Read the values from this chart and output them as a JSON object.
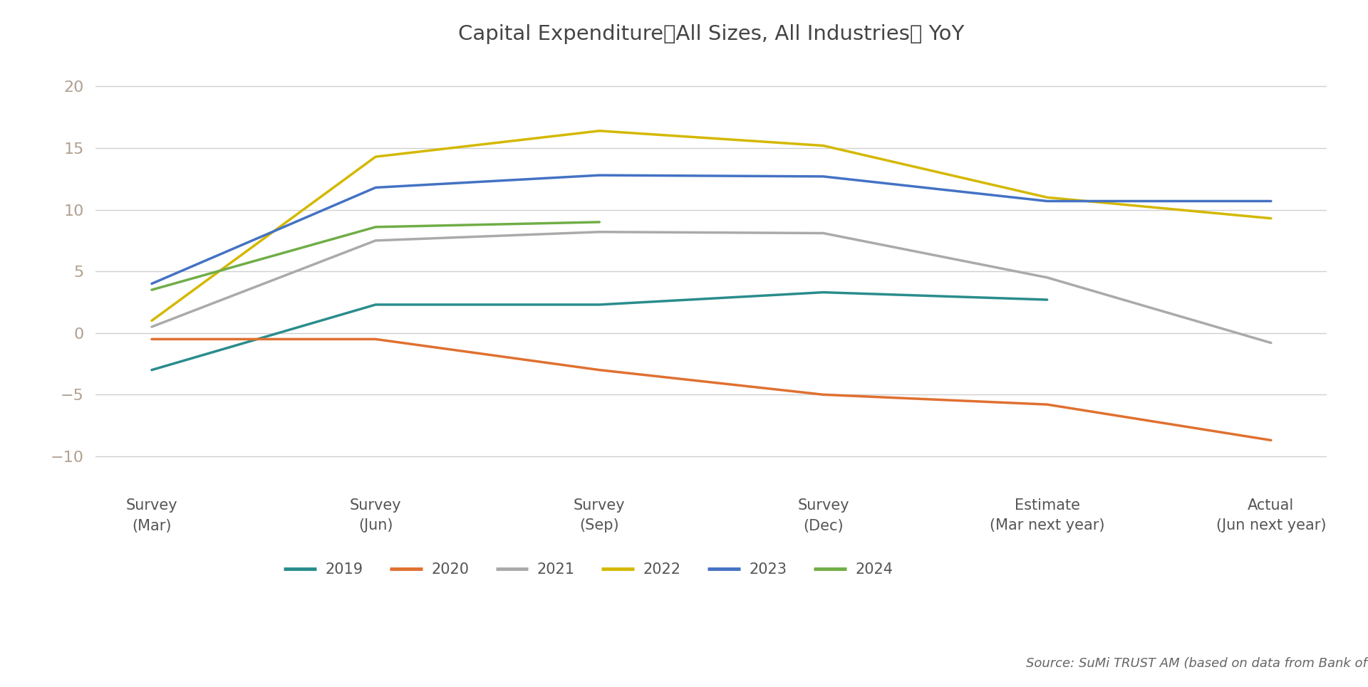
{
  "title": "Capital Expenditure（All Sizes, All Industries） YoY",
  "x_labels": [
    "Survey\n(Mar)",
    "Survey\n(Jun)",
    "Survey\n(Sep)",
    "Survey\n(Dec)",
    "Estimate\n(Mar next year)",
    "Actual\n(Jun next year)"
  ],
  "series": {
    "2019": {
      "values": [
        -3.0,
        2.3,
        2.3,
        3.3,
        2.7,
        null
      ],
      "color": "#2a8c8c"
    },
    "2020": {
      "values": [
        -0.5,
        -0.5,
        -3.0,
        -5.0,
        -5.8,
        -8.7
      ],
      "color": "#e07030"
    },
    "2021": {
      "values": [
        0.5,
        7.5,
        8.2,
        8.1,
        4.5,
        -0.8
      ],
      "color": "#aaaaaa"
    },
    "2022": {
      "values": [
        1.0,
        14.3,
        16.4,
        15.2,
        11.0,
        9.3
      ],
      "color": "#d4b800"
    },
    "2023": {
      "values": [
        4.0,
        11.8,
        12.8,
        12.7,
        10.7,
        10.7
      ],
      "color": "#4472c4"
    },
    "2024": {
      "values": [
        3.5,
        8.6,
        9.0,
        null,
        null,
        null
      ],
      "color": "#70ad47"
    }
  },
  "ylim": [
    -12,
    22
  ],
  "yticks": [
    -10,
    -5,
    0,
    5,
    10,
    15,
    20
  ],
  "source_text": "Source: SuMi TRUST AM (based on data from Bank of Japan)",
  "background_color": "#ffffff",
  "grid_color": "#d0d0d0",
  "legend_order": [
    "2019",
    "2020",
    "2021",
    "2022",
    "2023",
    "2024"
  ],
  "tick_color": "#b0a090",
  "linewidth": 2.5
}
